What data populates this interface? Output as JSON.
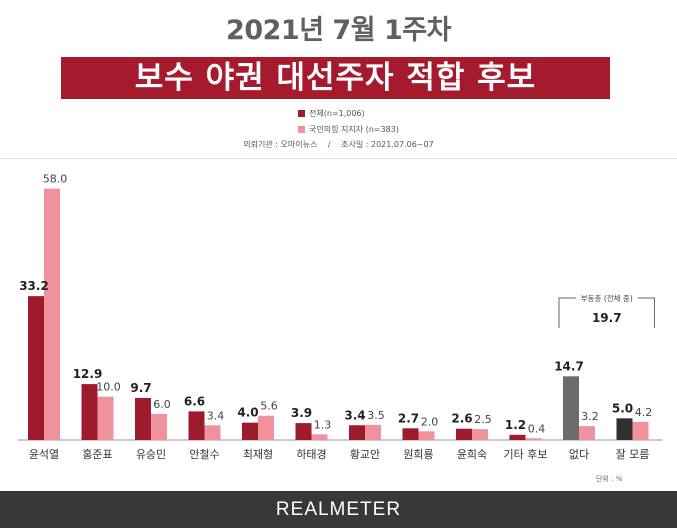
{
  "subtitle": "2021년 7월 1주차",
  "title": "보수 야권 대선주자 적합 후보",
  "legend": [
    {
      "label": "전체(n=1,006)",
      "color": "#9e1b2e"
    },
    {
      "label": "국민의힘 지지자 (n=383)",
      "color": "#f0929d"
    }
  ],
  "meta": {
    "agency": "의뢰기관 : 오마이뉴스",
    "separator": "/",
    "period": "조사일 : 2021.07.06~07"
  },
  "unit": "단위 : %",
  "footer": {
    "logo": "REALMETER"
  },
  "chart_data": {
    "type": "bar",
    "categories": [
      "윤석열",
      "홍준표",
      "유승민",
      "안철수",
      "최재형",
      "하태경",
      "황교안",
      "원희룡",
      "윤희숙",
      "기타 후보",
      "없다",
      "잘 모름"
    ],
    "series": [
      {
        "name": "전체(n=1,006)",
        "values": [
          33.2,
          12.9,
          9.7,
          6.6,
          4.0,
          3.9,
          3.4,
          2.7,
          2.6,
          1.2,
          14.7,
          5.0
        ]
      },
      {
        "name": "국민의힘 지지자 (n=383)",
        "values": [
          58.0,
          10.0,
          6.0,
          3.4,
          5.6,
          1.3,
          3.5,
          2.0,
          2.5,
          0.4,
          3.2,
          4.2
        ]
      }
    ],
    "primary_colors": [
      "#9e1b2e",
      "#9e1b2e",
      "#9e1b2e",
      "#9e1b2e",
      "#9e1b2e",
      "#9e1b2e",
      "#9e1b2e",
      "#9e1b2e",
      "#9e1b2e",
      "#9e1b2e",
      "#6b6b6b",
      "#2f2f2f"
    ],
    "secondary_color": "#f0929d",
    "annotation": {
      "label": "부동층 (전체 중)",
      "value": "19.7",
      "applies_to": [
        "없다",
        "잘 모름"
      ]
    },
    "ylim": [
      0,
      60
    ],
    "grid": false
  }
}
